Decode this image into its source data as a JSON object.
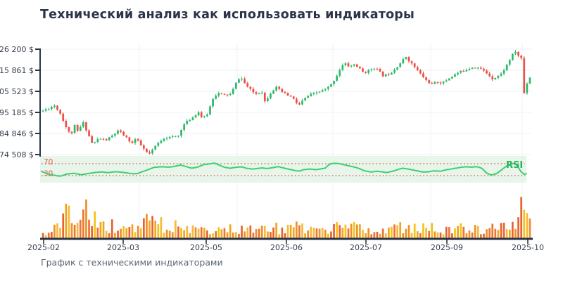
{
  "title": "Технический анализ как использовать индикаторы",
  "caption": "График с техническими индикаторами",
  "colors": {
    "title": "#2b3547",
    "axis": "#2b3547",
    "tick_label": "#38414f",
    "caption": "#5c6570",
    "grid": "#edf0f4",
    "candle_up": "#2cba69",
    "candle_down": "#ec4f44",
    "rsi_band_bg": "#e7f5eb",
    "rsi_line": "#3ecf72",
    "rsi_level": "#ee6a5c",
    "rsi_level_label": "#e8584a",
    "rsi_label": "#28b45f",
    "volume_palette": [
      "#f3c214",
      "#f0a51c",
      "#ee8f27",
      "#ea7530",
      "#f6b93c",
      "#e9632f"
    ]
  },
  "chart_data": {
    "type": "candlestick",
    "title": "Технический анализ как использовать индикаторы",
    "xlabel": "",
    "ylabel": "",
    "x_ticks": [
      {
        "label": "2025-02",
        "x": 62
      },
      {
        "label": "2025-03",
        "x": 175
      },
      {
        "label": "2025-05",
        "x": 293
      },
      {
        "label": "2025-06",
        "x": 407
      },
      {
        "label": "2025-07",
        "x": 520
      },
      {
        "label": "2025-09",
        "x": 635
      },
      {
        "label": "2025-10",
        "x": 750
      }
    ],
    "price_panel": {
      "type": "candlestick",
      "currency": "$",
      "y_ticks": [
        {
          "label": "26 200 $",
          "value": 126200
        },
        {
          "label": "15 861 $",
          "value": 115861
        },
        {
          "label": "05 523 $",
          "value": 105523
        },
        {
          "label": "95 185 $",
          "value": 95185
        },
        {
          "label": "84 846 $",
          "value": 84846
        },
        {
          "label": "74 508 $",
          "value": 74508
        }
      ],
      "candle_count": 170,
      "close_trend": [
        [
          0,
          96000
        ],
        [
          0.024,
          98600
        ],
        [
          0.036,
          94500
        ],
        [
          0.05,
          86500
        ],
        [
          0.058,
          84000
        ],
        [
          0.063,
          89500
        ],
        [
          0.072,
          85500
        ],
        [
          0.082,
          90500
        ],
        [
          0.092,
          85000
        ],
        [
          0.102,
          79500
        ],
        [
          0.115,
          82500
        ],
        [
          0.129,
          81500
        ],
        [
          0.144,
          84000
        ],
        [
          0.155,
          86200
        ],
        [
          0.168,
          83500
        ],
        [
          0.183,
          80000
        ],
        [
          0.191,
          82500
        ],
        [
          0.201,
          79000
        ],
        [
          0.213,
          75500
        ],
        [
          0.22,
          74800
        ],
        [
          0.23,
          78500
        ],
        [
          0.247,
          82500
        ],
        [
          0.266,
          83200
        ],
        [
          0.281,
          83800
        ],
        [
          0.285,
          88000
        ],
        [
          0.295,
          90500
        ],
        [
          0.309,
          93000
        ],
        [
          0.319,
          95500
        ],
        [
          0.328,
          92000
        ],
        [
          0.338,
          94500
        ],
        [
          0.35,
          102800
        ],
        [
          0.36,
          104500
        ],
        [
          0.371,
          103600
        ],
        [
          0.386,
          104200
        ],
        [
          0.4,
          111300
        ],
        [
          0.406,
          112400
        ],
        [
          0.417,
          108500
        ],
        [
          0.429,
          105500
        ],
        [
          0.439,
          104200
        ],
        [
          0.449,
          105800
        ],
        [
          0.456,
          100300
        ],
        [
          0.468,
          105000
        ],
        [
          0.479,
          107500
        ],
        [
          0.489,
          105500
        ],
        [
          0.501,
          103800
        ],
        [
          0.512,
          102500
        ],
        [
          0.525,
          98500
        ],
        [
          0.535,
          101500
        ],
        [
          0.547,
          103600
        ],
        [
          0.561,
          104800
        ],
        [
          0.578,
          106200
        ],
        [
          0.59,
          108200
        ],
        [
          0.601,
          112200
        ],
        [
          0.61,
          116400
        ],
        [
          0.619,
          119400
        ],
        [
          0.629,
          117600
        ],
        [
          0.64,
          118800
        ],
        [
          0.65,
          116600
        ],
        [
          0.659,
          114600
        ],
        [
          0.669,
          115600
        ],
        [
          0.679,
          117200
        ],
        [
          0.688,
          116000
        ],
        [
          0.698,
          113200
        ],
        [
          0.708,
          113800
        ],
        [
          0.717,
          115200
        ],
        [
          0.727,
          117600
        ],
        [
          0.737,
          120200
        ],
        [
          0.745,
          122600
        ],
        [
          0.755,
          119600
        ],
        [
          0.765,
          117000
        ],
        [
          0.777,
          113600
        ],
        [
          0.788,
          110600
        ],
        [
          0.799,
          109000
        ],
        [
          0.809,
          110200
        ],
        [
          0.82,
          109600
        ],
        [
          0.832,
          111600
        ],
        [
          0.842,
          113200
        ],
        [
          0.852,
          114600
        ],
        [
          0.863,
          115600
        ],
        [
          0.875,
          116800
        ],
        [
          0.885,
          117600
        ],
        [
          0.895,
          117000
        ],
        [
          0.903,
          116000
        ],
        [
          0.914,
          113800
        ],
        [
          0.924,
          111600
        ],
        [
          0.932,
          112800
        ],
        [
          0.942,
          114200
        ],
        [
          0.952,
          118200
        ],
        [
          0.964,
          123400
        ],
        [
          0.971,
          125100
        ],
        [
          0.978,
          122400
        ],
        [
          0.984,
          121500
        ],
        [
          0.988,
          104500
        ],
        [
          0.992,
          108500
        ],
        [
          0.996,
          110500
        ],
        [
          1,
          112400
        ]
      ]
    },
    "rsi_panel": {
      "type": "line",
      "label": "RSI",
      "levels": [
        {
          "label": "70",
          "value": 70
        },
        {
          "label": "30",
          "value": 30
        }
      ],
      "points": [
        [
          0,
          45
        ],
        [
          0.009,
          38
        ],
        [
          0.023,
          32
        ],
        [
          0.037,
          28
        ],
        [
          0.052,
          35
        ],
        [
          0.066,
          38
        ],
        [
          0.08,
          33
        ],
        [
          0.095,
          37
        ],
        [
          0.109,
          40
        ],
        [
          0.124,
          42
        ],
        [
          0.138,
          40
        ],
        [
          0.152,
          43
        ],
        [
          0.167,
          41
        ],
        [
          0.181,
          37
        ],
        [
          0.195,
          36
        ],
        [
          0.203,
          42
        ],
        [
          0.217,
          50
        ],
        [
          0.231,
          58
        ],
        [
          0.246,
          60
        ],
        [
          0.26,
          58
        ],
        [
          0.274,
          62
        ],
        [
          0.284,
          66
        ],
        [
          0.296,
          60
        ],
        [
          0.306,
          55
        ],
        [
          0.318,
          58
        ],
        [
          0.332,
          67
        ],
        [
          0.346,
          70
        ],
        [
          0.353,
          72
        ],
        [
          0.363,
          65
        ],
        [
          0.375,
          57
        ],
        [
          0.386,
          55
        ],
        [
          0.397,
          58
        ],
        [
          0.407,
          60
        ],
        [
          0.418,
          55
        ],
        [
          0.43,
          52
        ],
        [
          0.44,
          54
        ],
        [
          0.45,
          56
        ],
        [
          0.461,
          54
        ],
        [
          0.473,
          57
        ],
        [
          0.483,
          60
        ],
        [
          0.493,
          56
        ],
        [
          0.504,
          52
        ],
        [
          0.516,
          48
        ],
        [
          0.526,
          45
        ],
        [
          0.536,
          50
        ],
        [
          0.547,
          52
        ],
        [
          0.559,
          50
        ],
        [
          0.569,
          52
        ],
        [
          0.579,
          55
        ],
        [
          0.588,
          68
        ],
        [
          0.598,
          72
        ],
        [
          0.608,
          70
        ],
        [
          0.619,
          66
        ],
        [
          0.631,
          62
        ],
        [
          0.641,
          58
        ],
        [
          0.651,
          52
        ],
        [
          0.662,
          45
        ],
        [
          0.674,
          42
        ],
        [
          0.684,
          45
        ],
        [
          0.694,
          43
        ],
        [
          0.705,
          40
        ],
        [
          0.717,
          45
        ],
        [
          0.727,
          50
        ],
        [
          0.737,
          55
        ],
        [
          0.749,
          52
        ],
        [
          0.76,
          48
        ],
        [
          0.77,
          45
        ],
        [
          0.78,
          42
        ],
        [
          0.792,
          44
        ],
        [
          0.803,
          46
        ],
        [
          0.813,
          44
        ],
        [
          0.823,
          48
        ],
        [
          0.835,
          52
        ],
        [
          0.846,
          55
        ],
        [
          0.856,
          58
        ],
        [
          0.866,
          60
        ],
        [
          0.878,
          58
        ],
        [
          0.889,
          60
        ],
        [
          0.899,
          55
        ],
        [
          0.909,
          38
        ],
        [
          0.918,
          32
        ],
        [
          0.928,
          36
        ],
        [
          0.938,
          48
        ],
        [
          0.947,
          60
        ],
        [
          0.957,
          68
        ],
        [
          0.964,
          71
        ],
        [
          0.971,
          65
        ],
        [
          0.978,
          45
        ],
        [
          0.986,
          33
        ],
        [
          0.993,
          40
        ],
        [
          1,
          46
        ]
      ]
    },
    "volume_panel": {
      "type": "bar",
      "bar_count": 170,
      "envelope": [
        [
          0,
          0.18
        ],
        [
          0.023,
          0.38
        ],
        [
          0.042,
          0.55
        ],
        [
          0.055,
          1
        ],
        [
          0.063,
          0.72
        ],
        [
          0.073,
          0.62
        ],
        [
          0.083,
          0.95
        ],
        [
          0.093,
          0.72
        ],
        [
          0.105,
          0.62
        ],
        [
          0.116,
          0.45
        ],
        [
          0.131,
          0.35
        ],
        [
          0.142,
          0.4
        ],
        [
          0.154,
          0.32
        ],
        [
          0.167,
          0.3
        ],
        [
          0.181,
          0.42
        ],
        [
          0.195,
          0.32
        ],
        [
          0.208,
          0.5
        ],
        [
          0.216,
          1
        ],
        [
          0.223,
          0.95
        ],
        [
          0.234,
          0.55
        ],
        [
          0.249,
          0.4
        ],
        [
          0.267,
          0.35
        ],
        [
          0.286,
          0.48
        ],
        [
          0.303,
          0.32
        ],
        [
          0.325,
          0.38
        ],
        [
          0.346,
          0.3
        ],
        [
          0.368,
          0.42
        ],
        [
          0.389,
          0.35
        ],
        [
          0.411,
          0.3
        ],
        [
          0.432,
          0.28
        ],
        [
          0.454,
          0.32
        ],
        [
          0.475,
          0.35
        ],
        [
          0.497,
          0.25
        ],
        [
          0.516,
          0.42
        ],
        [
          0.533,
          0.32
        ],
        [
          0.554,
          0.28
        ],
        [
          0.576,
          0.32
        ],
        [
          0.598,
          0.38
        ],
        [
          0.619,
          0.3
        ],
        [
          0.641,
          0.35
        ],
        [
          0.662,
          0.3
        ],
        [
          0.684,
          0.28
        ],
        [
          0.705,
          0.35
        ],
        [
          0.727,
          0.4
        ],
        [
          0.748,
          0.35
        ],
        [
          0.77,
          0.3
        ],
        [
          0.791,
          0.35
        ],
        [
          0.813,
          0.28
        ],
        [
          0.834,
          0.32
        ],
        [
          0.856,
          0.35
        ],
        [
          0.877,
          0.28
        ],
        [
          0.899,
          0.32
        ],
        [
          0.92,
          0.35
        ],
        [
          0.942,
          0.4
        ],
        [
          0.961,
          0.45
        ],
        [
          0.975,
          0.55
        ],
        [
          0.982,
          1
        ],
        [
          0.989,
          0.62
        ],
        [
          1,
          0.45
        ]
      ]
    },
    "layout": {
      "grid": true,
      "plot_x": [
        57,
        757
      ],
      "price_y": [
        70,
        220
      ],
      "candles_x": [
        59,
        755
      ],
      "rsi_band": {
        "x0": 57,
        "x1": 748,
        "y_top": 222,
        "height": 38,
        "y70": 233,
        "y30": 250
      },
      "volume": {
        "base_y": 340,
        "max_height": 70
      },
      "grid_vx": [
        198,
        337,
        473,
        612,
        742
      ],
      "axis_x_y": 340
    }
  }
}
